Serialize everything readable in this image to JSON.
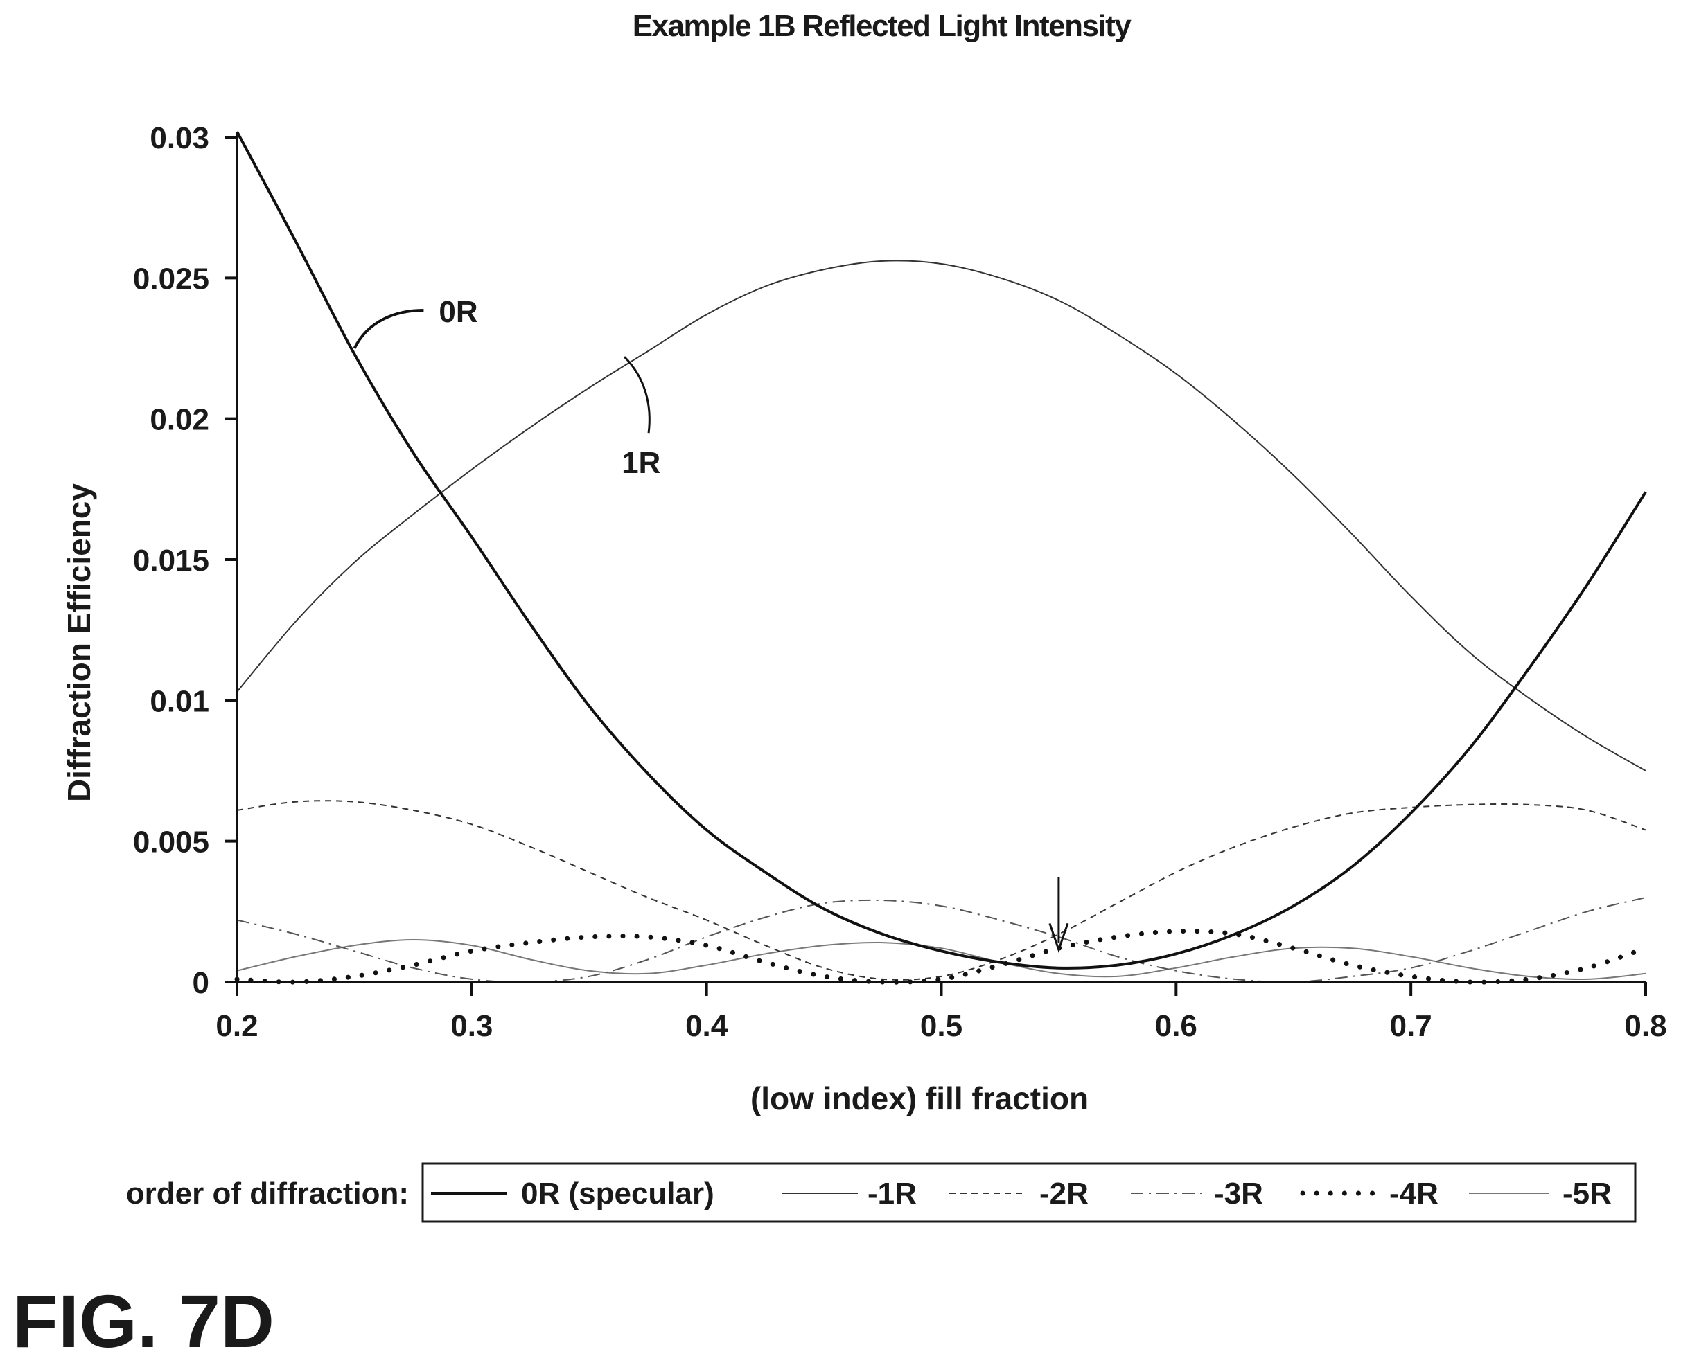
{
  "figure_label": "FIG. 7D",
  "chart_data": {
    "type": "line",
    "title": "Example 1B Reflected Light Intensity",
    "xlabel": "(low index) fill fraction",
    "ylabel": "Diffraction Efficiency",
    "xlim": [
      0.2,
      0.8
    ],
    "ylim": [
      0,
      0.03
    ],
    "x_ticks": [
      "0.2",
      "0.3",
      "0.4",
      "0.5",
      "0.6",
      "0.7",
      "0.8"
    ],
    "y_ticks": [
      "0",
      "0.005",
      "0.01",
      "0.015",
      "0.02",
      "0.025",
      "0.03"
    ],
    "grid": false,
    "legend_title": "order of diffraction:",
    "legend_position": "bottom",
    "series": [
      {
        "name": "0R (specular)",
        "style": "solid-thick",
        "x": [
          0.2,
          0.225,
          0.25,
          0.275,
          0.3,
          0.325,
          0.35,
          0.375,
          0.4,
          0.425,
          0.45,
          0.475,
          0.5,
          0.525,
          0.55,
          0.575,
          0.6,
          0.625,
          0.65,
          0.675,
          0.7,
          0.725,
          0.75,
          0.775,
          0.8
        ],
        "values": [
          0.0302,
          0.0263,
          0.0223,
          0.0188,
          0.0158,
          0.0127,
          0.0098,
          0.0074,
          0.0054,
          0.0039,
          0.0026,
          0.0017,
          0.0011,
          0.0007,
          0.0005,
          0.0006,
          0.001,
          0.0017,
          0.0027,
          0.0041,
          0.006,
          0.0083,
          0.0111,
          0.0141,
          0.0174
        ]
      },
      {
        "name": "-1R",
        "style": "solid-thin",
        "x": [
          0.2,
          0.225,
          0.25,
          0.275,
          0.3,
          0.325,
          0.35,
          0.375,
          0.4,
          0.425,
          0.45,
          0.475,
          0.5,
          0.525,
          0.55,
          0.575,
          0.6,
          0.625,
          0.65,
          0.675,
          0.7,
          0.725,
          0.75,
          0.775,
          0.8
        ],
        "values": [
          0.0103,
          0.0128,
          0.0149,
          0.0166,
          0.0182,
          0.0197,
          0.0211,
          0.0224,
          0.0237,
          0.0247,
          0.0253,
          0.0256,
          0.0255,
          0.025,
          0.0242,
          0.023,
          0.0216,
          0.0199,
          0.018,
          0.0159,
          0.0137,
          0.0117,
          0.0101,
          0.0087,
          0.0075
        ]
      },
      {
        "name": "-2R",
        "style": "dashed",
        "x": [
          0.2,
          0.225,
          0.25,
          0.275,
          0.3,
          0.325,
          0.35,
          0.375,
          0.4,
          0.425,
          0.45,
          0.475,
          0.5,
          0.525,
          0.55,
          0.575,
          0.6,
          0.625,
          0.65,
          0.675,
          0.7,
          0.725,
          0.75,
          0.775,
          0.8
        ],
        "values": [
          0.0061,
          0.0064,
          0.0064,
          0.0061,
          0.0056,
          0.0048,
          0.0039,
          0.003,
          0.0022,
          0.0013,
          0.0005,
          0.0001,
          0.0002,
          0.0008,
          0.0017,
          0.0028,
          0.0039,
          0.0048,
          0.0055,
          0.006,
          0.0062,
          0.0063,
          0.0063,
          0.0061,
          0.0054
        ]
      },
      {
        "name": "-3R",
        "style": "dash-dot",
        "x": [
          0.2,
          0.225,
          0.25,
          0.275,
          0.3,
          0.325,
          0.35,
          0.375,
          0.4,
          0.425,
          0.45,
          0.475,
          0.5,
          0.525,
          0.55,
          0.575,
          0.6,
          0.625,
          0.65,
          0.675,
          0.7,
          0.725,
          0.75,
          0.775,
          0.8
        ],
        "values": [
          0.0022,
          0.0017,
          0.0011,
          0.0005,
          0.0001,
          0.0,
          0.0002,
          0.0008,
          0.0016,
          0.0023,
          0.0028,
          0.0029,
          0.0027,
          0.0022,
          0.0016,
          0.0009,
          0.0004,
          0.0001,
          0.0,
          0.0002,
          0.0005,
          0.0011,
          0.0018,
          0.0025,
          0.003
        ]
      },
      {
        "name": "-4R",
        "style": "dotted",
        "x": [
          0.2,
          0.225,
          0.25,
          0.275,
          0.3,
          0.325,
          0.35,
          0.375,
          0.4,
          0.425,
          0.45,
          0.475,
          0.5,
          0.525,
          0.55,
          0.575,
          0.6,
          0.625,
          0.65,
          0.675,
          0.7,
          0.725,
          0.75,
          0.775,
          0.8
        ],
        "values": [
          0.0001,
          0.0,
          0.0002,
          0.0006,
          0.0011,
          0.0014,
          0.0016,
          0.0016,
          0.0013,
          0.0007,
          0.0002,
          0.0,
          0.0001,
          0.0006,
          0.0012,
          0.0016,
          0.0018,
          0.0017,
          0.0012,
          0.0006,
          0.0002,
          0.0,
          0.0001,
          0.0005,
          0.0012
        ]
      },
      {
        "name": "-5R",
        "style": "solid-gray",
        "x": [
          0.2,
          0.225,
          0.25,
          0.275,
          0.3,
          0.325,
          0.35,
          0.375,
          0.4,
          0.425,
          0.45,
          0.475,
          0.5,
          0.525,
          0.55,
          0.575,
          0.6,
          0.625,
          0.65,
          0.675,
          0.7,
          0.725,
          0.75,
          0.775,
          0.8
        ],
        "values": [
          0.0004,
          0.0009,
          0.0013,
          0.0015,
          0.0013,
          0.0008,
          0.0004,
          0.0003,
          0.0006,
          0.001,
          0.0013,
          0.0014,
          0.0012,
          0.0007,
          0.0003,
          0.0002,
          0.0005,
          0.0009,
          0.0012,
          0.0012,
          0.0009,
          0.0005,
          0.0002,
          0.0001,
          0.0003
        ]
      }
    ],
    "annotations": [
      {
        "label": "0R",
        "x": 0.25,
        "y": 0.0225
      },
      {
        "label": "1R",
        "x": 0.365,
        "y": 0.0222
      },
      {
        "label": "",
        "type": "arrow",
        "x": 0.55,
        "y": 0.0009
      }
    ]
  }
}
